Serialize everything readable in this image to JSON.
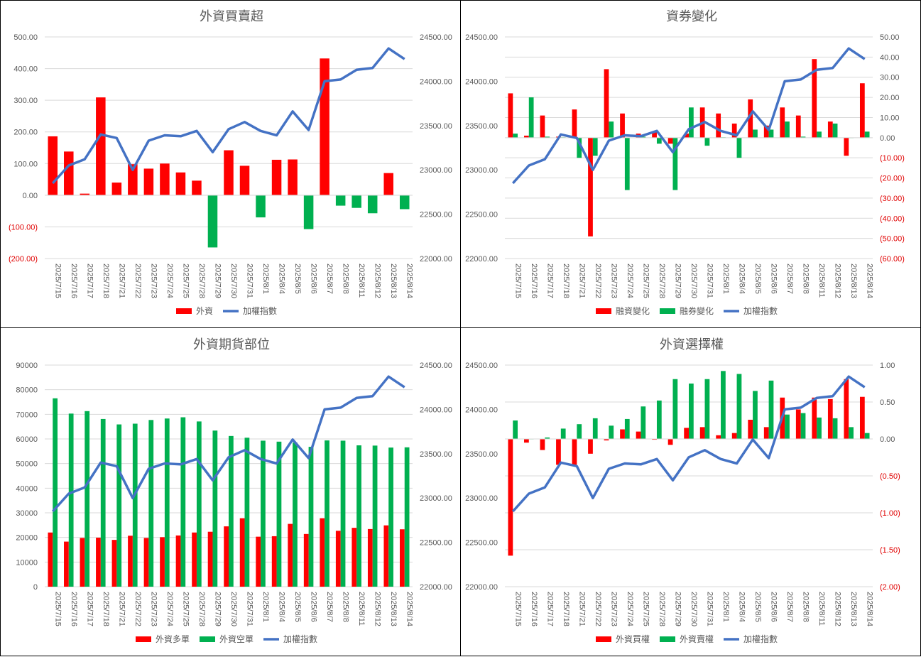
{
  "dates": [
    "2025/7/15",
    "2025/7/16",
    "2025/7/17",
    "2025/7/18",
    "2025/7/21",
    "2025/7/22",
    "2025/7/23",
    "2025/7/24",
    "2025/7/25",
    "2025/7/28",
    "2025/7/29",
    "2025/7/30",
    "2025/7/31",
    "2025/8/1",
    "2025/8/4",
    "2025/8/5",
    "2025/8/6",
    "2025/8/7",
    "2025/8/8",
    "2025/8/11",
    "2025/8/12",
    "2025/8/13",
    "2025/8/14"
  ],
  "index": [
    22850,
    23050,
    23120,
    23400,
    23360,
    23000,
    23330,
    23390,
    23380,
    23440,
    23200,
    23460,
    23540,
    23440,
    23390,
    23660,
    23450,
    24000,
    24020,
    24130,
    24150,
    24370,
    24250
  ],
  "chart_data": [
    {
      "id": "foreign-net",
      "type": "bar",
      "title": "外資買賣超",
      "series": [
        {
          "name": "外資",
          "values": [
            186,
            138,
            5,
            309,
            40,
            98,
            84,
            100,
            72,
            46,
            -165,
            142,
            93,
            -70,
            112,
            113,
            -107,
            432,
            -33,
            -40,
            -57,
            70,
            -44
          ],
          "color": "#ff0000",
          "neg_color": "#00b050",
          "axis": "left"
        },
        {
          "name": "加權指數",
          "type": "line",
          "use_index": true,
          "color": "#4472c4",
          "axis": "right"
        }
      ],
      "left_axis": {
        "min": -200,
        "max": 500,
        "step": 100,
        "ticks": [
          "(200.00)",
          "(100.00)",
          "0.00",
          "100.00",
          "200.00",
          "300.00",
          "400.00",
          "500.00"
        ],
        "neg_red": true
      },
      "right_axis": {
        "min": 22000,
        "max": 24500,
        "step": 500,
        "ticks": [
          "22000.00",
          "22500.00",
          "23000.00",
          "23500.00",
          "24000.00",
          "24500.00"
        ],
        "neg_red": false
      }
    },
    {
      "id": "margin-short",
      "type": "bar",
      "title": "資券變化",
      "series": [
        {
          "name": "融資變化",
          "values": [
            22,
            1,
            11,
            0.5,
            14,
            -49,
            34,
            12,
            2,
            3,
            -3,
            2,
            15,
            12,
            7,
            19,
            6,
            15,
            11,
            39,
            8,
            -9,
            27
          ],
          "color": "#ff0000",
          "axis": "right"
        },
        {
          "name": "融券變化",
          "values": [
            2,
            20,
            0.5,
            0.2,
            -10,
            -9,
            8,
            -26,
            0.5,
            -3,
            -26,
            15,
            -4,
            0.2,
            -10,
            4,
            4,
            8,
            0.5,
            3,
            7,
            0,
            3
          ],
          "color": "#00b050",
          "axis": "right"
        },
        {
          "name": "加權指數",
          "type": "line",
          "use_index": true,
          "color": "#4472c4",
          "axis": "left"
        }
      ],
      "left_axis": {
        "min": 22000,
        "max": 24500,
        "step": 500,
        "ticks": [
          "22000.00",
          "22500.00",
          "23000.00",
          "23500.00",
          "24000.00",
          "24500.00"
        ],
        "neg_red": false
      },
      "right_axis": {
        "min": -60,
        "max": 50,
        "step": 10,
        "ticks": [
          "(60.00)",
          "(50.00)",
          "(40.00)",
          "(30.00)",
          "(20.00)",
          "(10.00)",
          "0.00",
          "10.00",
          "20.00",
          "30.00",
          "40.00",
          "50.00"
        ],
        "neg_red": true
      }
    },
    {
      "id": "foreign-futures",
      "type": "bar",
      "title": "外資期貨部位",
      "series": [
        {
          "name": "外資多單",
          "values": [
            22000,
            18300,
            19800,
            19900,
            19000,
            20700,
            19800,
            20100,
            20800,
            22000,
            22300,
            24500,
            27800,
            20300,
            20500,
            25500,
            21400,
            27800,
            22700,
            23900,
            23400,
            24900,
            23300
          ],
          "color": "#ff0000",
          "axis": "left"
        },
        {
          "name": "外資空單",
          "values": [
            76500,
            70300,
            71300,
            68100,
            65900,
            66200,
            67700,
            68300,
            68800,
            67100,
            63400,
            61200,
            60500,
            59300,
            58900,
            58500,
            56800,
            59400,
            59300,
            57400,
            57300,
            56500,
            56600
          ],
          "color": "#00b050",
          "axis": "left"
        },
        {
          "name": "加權指數",
          "type": "line",
          "use_index": true,
          "color": "#4472c4",
          "axis": "right"
        }
      ],
      "left_axis": {
        "min": 0,
        "max": 90000,
        "step": 10000,
        "ticks": [
          "0",
          "10000",
          "20000",
          "30000",
          "40000",
          "50000",
          "60000",
          "70000",
          "80000",
          "90000"
        ],
        "neg_red": false
      },
      "right_axis": {
        "min": 22000,
        "max": 24500,
        "step": 500,
        "ticks": [
          "22000.00",
          "22500.00",
          "23000.00",
          "23500.00",
          "24000.00",
          "24500.00"
        ],
        "neg_red": false
      }
    },
    {
      "id": "foreign-options",
      "type": "bar",
      "title": "外資選擇權",
      "series": [
        {
          "name": "外資買權",
          "values": [
            -1.58,
            -0.05,
            -0.15,
            -0.35,
            -0.35,
            -0.2,
            -0.02,
            0.13,
            0.1,
            -0.01,
            -0.08,
            0.15,
            0.16,
            0.05,
            0.08,
            0.26,
            0.16,
            0.56,
            0.4,
            0.56,
            0.54,
            0.81,
            0.57
          ],
          "color": "#ff0000",
          "axis": "right"
        },
        {
          "name": "外資賣權",
          "values": [
            0.25,
            0.0,
            0.02,
            0.14,
            0.2,
            0.28,
            0.18,
            0.27,
            0.44,
            0.52,
            0.81,
            0.75,
            0.81,
            0.92,
            0.88,
            0.65,
            0.79,
            0.33,
            0.35,
            0.29,
            0.28,
            0.16,
            0.08
          ],
          "color": "#00b050",
          "axis": "right"
        },
        {
          "name": "加權指數",
          "type": "line",
          "use_index": true,
          "color": "#4472c4",
          "axis": "left"
        }
      ],
      "left_axis": {
        "min": 22000,
        "max": 24500,
        "step": 500,
        "ticks": [
          "22000.00",
          "22500.00",
          "23000.00",
          "23500.00",
          "24000.00",
          "24500.00"
        ],
        "neg_red": false
      },
      "right_axis": {
        "min": -2,
        "max": 1,
        "step": 0.5,
        "ticks": [
          "(2.00)",
          "(1.50)",
          "(1.00)",
          "(0.50)",
          "0.00",
          "0.50",
          "1.00"
        ],
        "neg_red": true
      }
    }
  ]
}
